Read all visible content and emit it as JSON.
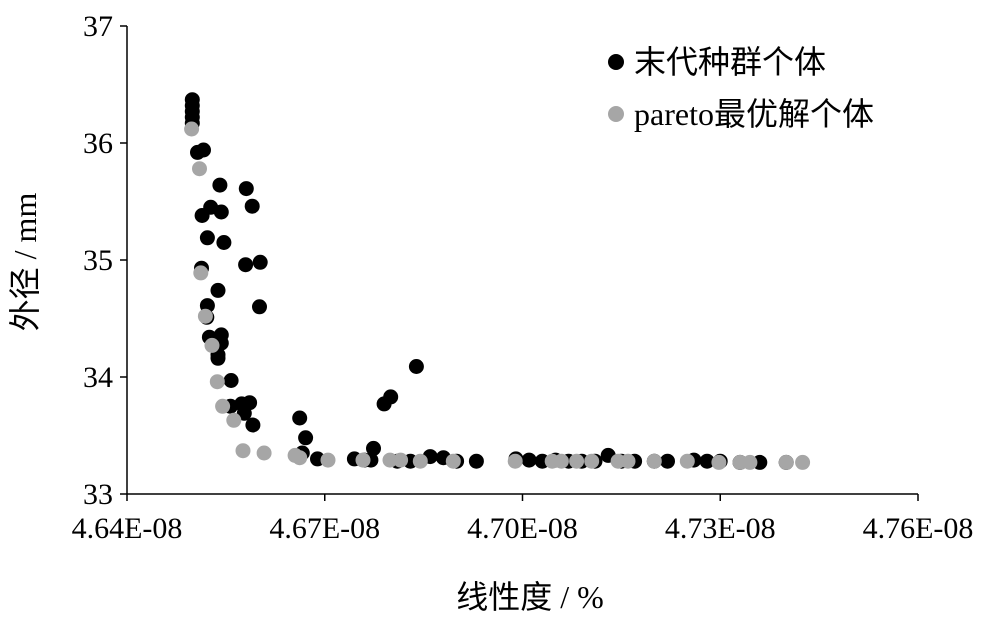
{
  "chart_data": {
    "type": "scatter",
    "xlabel": "线性度 / %",
    "ylabel": "外径 / mm",
    "xlim": [
      4.64e-08,
      4.76e-08
    ],
    "ylim": [
      33,
      37
    ],
    "xticks": [
      4.64e-08,
      4.67e-08,
      4.7e-08,
      4.73e-08,
      4.76e-08
    ],
    "xtick_labels": [
      "4.64E-08",
      "4.67E-08",
      "4.70E-08",
      "4.73E-08",
      "4.76E-08"
    ],
    "yticks": [
      33,
      34,
      35,
      36,
      37
    ],
    "ytick_labels": [
      "33",
      "34",
      "35",
      "36",
      "37"
    ],
    "grid": false,
    "legend_position": "top-right",
    "series": [
      {
        "name": "末代种群个体",
        "color": "#000000",
        "points": [
          [
            4.6499e-08,
            36.37
          ],
          [
            4.6499e-08,
            36.32
          ],
          [
            4.6499e-08,
            36.27
          ],
          [
            4.6499e-08,
            36.22
          ],
          [
            4.6499e-08,
            36.17
          ],
          [
            4.6507e-08,
            35.92
          ],
          [
            4.6516e-08,
            35.94
          ],
          [
            4.6541e-08,
            35.64
          ],
          [
            4.6581e-08,
            35.61
          ],
          [
            4.659e-08,
            35.46
          ],
          [
            4.6543e-08,
            35.41
          ],
          [
            4.6527e-08,
            35.45
          ],
          [
            4.6514e-08,
            35.38
          ],
          [
            4.6522e-08,
            35.19
          ],
          [
            4.6547e-08,
            35.15
          ],
          [
            4.6602e-08,
            34.98
          ],
          [
            4.658e-08,
            34.96
          ],
          [
            4.6513e-08,
            34.93
          ],
          [
            4.6538e-08,
            34.74
          ],
          [
            4.6522e-08,
            34.61
          ],
          [
            4.6601e-08,
            34.6
          ],
          [
            4.6521e-08,
            34.51
          ],
          [
            4.6525e-08,
            34.34
          ],
          [
            4.6543e-08,
            34.36
          ],
          [
            4.6543e-08,
            34.29
          ],
          [
            4.6538e-08,
            34.19
          ],
          [
            4.6538e-08,
            34.16
          ],
          [
            4.6558e-08,
            33.97
          ],
          [
            4.6574e-08,
            33.77
          ],
          [
            4.6586e-08,
            33.78
          ],
          [
            4.6557e-08,
            33.75
          ],
          [
            4.6578e-08,
            33.69
          ],
          [
            4.6591e-08,
            33.59
          ],
          [
            4.6662e-08,
            33.65
          ],
          [
            4.6671e-08,
            33.48
          ],
          [
            4.6666e-08,
            33.35
          ],
          [
            4.6689e-08,
            33.3
          ],
          [
            4.6745e-08,
            33.3
          ],
          [
            4.6774e-08,
            33.39
          ],
          [
            4.679e-08,
            33.77
          ],
          [
            4.68e-08,
            33.83
          ],
          [
            4.6839e-08,
            34.09
          ],
          [
            4.676e-08,
            33.29
          ],
          [
            4.677e-08,
            33.29
          ],
          [
            4.681e-08,
            33.28
          ],
          [
            4.683e-08,
            33.28
          ],
          [
            4.686e-08,
            33.32
          ],
          [
            4.688e-08,
            33.31
          ],
          [
            4.69e-08,
            33.28
          ],
          [
            4.693e-08,
            33.28
          ],
          [
            4.699e-08,
            33.3
          ],
          [
            4.701e-08,
            33.29
          ],
          [
            4.703e-08,
            33.28
          ],
          [
            4.705e-08,
            33.29
          ],
          [
            4.707e-08,
            33.28
          ],
          [
            4.709e-08,
            33.28
          ],
          [
            4.711e-08,
            33.28
          ],
          [
            4.713e-08,
            33.33
          ],
          [
            4.715e-08,
            33.28
          ],
          [
            4.717e-08,
            33.28
          ],
          [
            4.72e-08,
            33.28
          ],
          [
            4.722e-08,
            33.28
          ],
          [
            4.726e-08,
            33.29
          ],
          [
            4.728e-08,
            33.28
          ],
          [
            4.73e-08,
            33.28
          ],
          [
            4.733e-08,
            33.27
          ],
          [
            4.736e-08,
            33.27
          ],
          [
            4.74e-08,
            33.27
          ]
        ]
      },
      {
        "name": "pareto最优解个体",
        "color": "#a6a6a6",
        "points": [
          [
            4.6498e-08,
            36.12
          ],
          [
            4.651e-08,
            35.78
          ],
          [
            4.6512e-08,
            34.89
          ],
          [
            4.6519e-08,
            34.52
          ],
          [
            4.6529e-08,
            34.27
          ],
          [
            4.6537e-08,
            33.96
          ],
          [
            4.6545e-08,
            33.75
          ],
          [
            4.6562e-08,
            33.63
          ],
          [
            4.6576e-08,
            33.37
          ],
          [
            4.6608e-08,
            33.35
          ],
          [
            4.6655e-08,
            33.33
          ],
          [
            4.6662e-08,
            33.31
          ],
          [
            4.6705e-08,
            33.29
          ],
          [
            4.6758e-08,
            33.29
          ],
          [
            4.6799e-08,
            33.29
          ],
          [
            4.6815e-08,
            33.29
          ],
          [
            4.6845e-08,
            33.28
          ],
          [
            4.6895e-08,
            33.28
          ],
          [
            4.6989e-08,
            33.28
          ],
          [
            4.7045e-08,
            33.28
          ],
          [
            4.7059e-08,
            33.28
          ],
          [
            4.7082e-08,
            33.28
          ],
          [
            4.7105e-08,
            33.28
          ],
          [
            4.7145e-08,
            33.28
          ],
          [
            4.716e-08,
            33.28
          ],
          [
            4.72e-08,
            33.28
          ],
          [
            4.725e-08,
            33.28
          ],
          [
            4.7298e-08,
            33.27
          ],
          [
            4.733e-08,
            33.27
          ],
          [
            4.7345e-08,
            33.27
          ],
          [
            4.74e-08,
            33.27
          ],
          [
            4.7425e-08,
            33.27
          ]
        ]
      }
    ]
  }
}
